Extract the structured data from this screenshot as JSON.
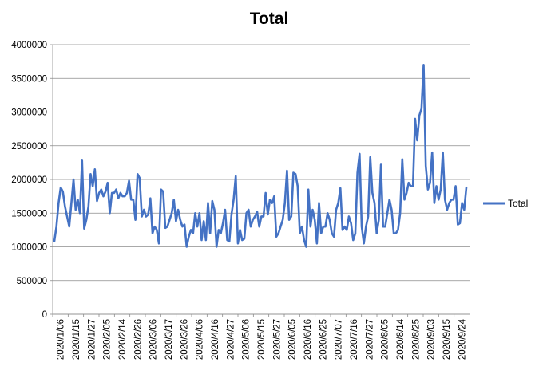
{
  "chart_data": {
    "type": "line",
    "title": "Total",
    "xlabel": "",
    "ylabel": "",
    "ylim": [
      0,
      4000000
    ],
    "y_ticks": [
      "0",
      "500000",
      "1000000",
      "1500000",
      "2000000",
      "2500000",
      "3000000",
      "3500000",
      "4000000"
    ],
    "x_tick_labels": [
      "2020/1/06",
      "2020/1/15",
      "2020/1/27",
      "2020/2/05",
      "2020/2/14",
      "2020/2/26",
      "2020/3/06",
      "2020/3/17",
      "2020/3/26",
      "2020/4/06",
      "2020/4/16",
      "2020/4/27",
      "2020/5/06",
      "2020/5/15",
      "2020/5/27",
      "2020/6/05",
      "2020/6/16",
      "2020/6/25",
      "2020/7/07",
      "2020/7/16",
      "2020/7/27",
      "2020/8/05",
      "2020/8/14",
      "2020/8/25",
      "2020/9/03",
      "2020/9/15",
      "2020/9/24"
    ],
    "grid": "horizontal",
    "legend_position": "right",
    "line_color": "#4472c4",
    "series": [
      {
        "name": "Total",
        "values": [
          1080000,
          1300000,
          1650000,
          1880000,
          1820000,
          1600000,
          1450000,
          1300000,
          1650000,
          2000000,
          1550000,
          1700000,
          1500000,
          2280000,
          1270000,
          1400000,
          1600000,
          2080000,
          1900000,
          2150000,
          1680000,
          1800000,
          1850000,
          1750000,
          1820000,
          1950000,
          1500000,
          1800000,
          1800000,
          1850000,
          1720000,
          1800000,
          1750000,
          1750000,
          1800000,
          1980000,
          1700000,
          1700000,
          1400000,
          2080000,
          2020000,
          1450000,
          1550000,
          1450000,
          1480000,
          1720000,
          1200000,
          1300000,
          1250000,
          1050000,
          1850000,
          1820000,
          1280000,
          1300000,
          1400000,
          1500000,
          1700000,
          1380000,
          1550000,
          1400000,
          1300000,
          1330000,
          1000000,
          1150000,
          1250000,
          1200000,
          1500000,
          1300000,
          1500000,
          1100000,
          1380000,
          1100000,
          1650000,
          1200000,
          1680000,
          1550000,
          1000000,
          1250000,
          1200000,
          1350000,
          1550000,
          1100000,
          1080000,
          1480000,
          1700000,
          2050000,
          1050000,
          1250000,
          1100000,
          1120000,
          1500000,
          1550000,
          1300000,
          1400000,
          1450000,
          1520000,
          1300000,
          1450000,
          1450000,
          1800000,
          1480000,
          1700000,
          1650000,
          1750000,
          1150000,
          1200000,
          1300000,
          1400000,
          1650000,
          2130000,
          1400000,
          1450000,
          2100000,
          2080000,
          1900000,
          1200000,
          1300000,
          1100000,
          1000000,
          1850000,
          1300000,
          1550000,
          1400000,
          1050000,
          1650000,
          1200000,
          1300000,
          1300000,
          1500000,
          1400000,
          1200000,
          1150000,
          1550000,
          1650000,
          1870000,
          1250000,
          1300000,
          1250000,
          1450000,
          1350000,
          1100000,
          1200000,
          2100000,
          2380000,
          1300000,
          1050000,
          1300000,
          1450000,
          2330000,
          1800000,
          1650000,
          1200000,
          1400000,
          2220000,
          1300000,
          1300000,
          1500000,
          1700000,
          1550000,
          1200000,
          1200000,
          1250000,
          1500000,
          2300000,
          1700000,
          1800000,
          1950000,
          1900000,
          1900000,
          2900000,
          2580000,
          2950000,
          3050000,
          3700000,
          2200000,
          1850000,
          1950000,
          2400000,
          1650000,
          1900000,
          1700000,
          1850000,
          2400000,
          1700000,
          1550000,
          1650000,
          1700000,
          1700000,
          1900000,
          1330000,
          1350000,
          1650000,
          1550000,
          1880000
        ]
      }
    ]
  }
}
